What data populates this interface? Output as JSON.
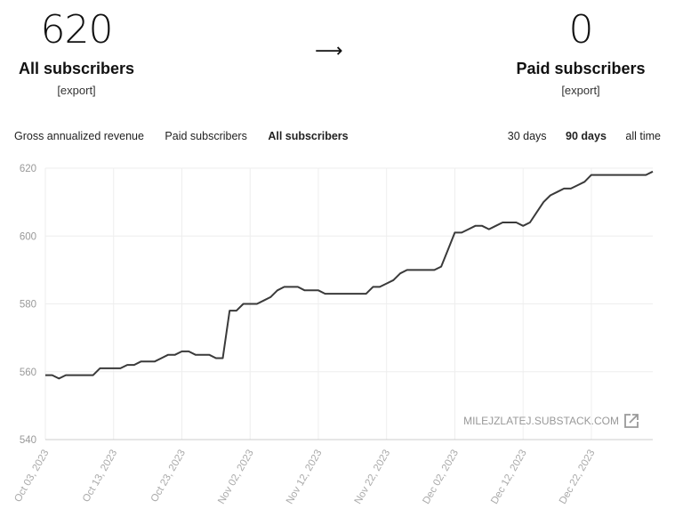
{
  "summary": {
    "all_count": "620",
    "all_label": "All subscribers",
    "all_export": "[export]",
    "arrow": "⟶",
    "paid_count": "0",
    "paid_label": "Paid subscribers",
    "paid_export": "[export]"
  },
  "metric_tabs": [
    {
      "label": "Gross annualized revenue",
      "active": false
    },
    {
      "label": "Paid subscribers",
      "active": false
    },
    {
      "label": "All subscribers",
      "active": true
    }
  ],
  "range_tabs": [
    {
      "label": "30 days",
      "active": false
    },
    {
      "label": "90 days",
      "active": true
    },
    {
      "label": "all time",
      "active": false
    }
  ],
  "watermark": "MILEJZLATEJ.SUBSTACK.COM",
  "colors": {
    "line": "#3a3a3a",
    "grid": "#eeeeee",
    "tick": "#999999"
  },
  "icons": {
    "external_link": "external-link-icon"
  },
  "chart_data": {
    "type": "line",
    "title": "",
    "xlabel": "",
    "ylabel": "",
    "ylim": [
      540,
      620
    ],
    "yticks": [
      540,
      560,
      580,
      600,
      620
    ],
    "xticks": [
      "Oct 03, 2023",
      "Oct 13, 2023",
      "Oct 23, 2023",
      "Nov 02, 2023",
      "Nov 12, 2023",
      "Nov 22, 2023",
      "Dec 02, 2023",
      "Dec 12, 2023",
      "Dec 22, 2023"
    ],
    "grid": true,
    "series": [
      {
        "x": [
          "2023-10-03",
          "2023-10-04",
          "2023-10-05",
          "2023-10-06",
          "2023-10-07",
          "2023-10-08",
          "2023-10-09",
          "2023-10-10",
          "2023-10-11",
          "2023-10-12",
          "2023-10-13",
          "2023-10-14",
          "2023-10-15",
          "2023-10-16",
          "2023-10-17",
          "2023-10-18",
          "2023-10-19",
          "2023-10-20",
          "2023-10-21",
          "2023-10-22",
          "2023-10-23",
          "2023-10-24",
          "2023-10-25",
          "2023-10-26",
          "2023-10-27",
          "2023-10-28",
          "2023-10-29",
          "2023-10-30",
          "2023-10-31",
          "2023-11-01",
          "2023-11-02",
          "2023-11-03",
          "2023-11-04",
          "2023-11-05",
          "2023-11-06",
          "2023-11-07",
          "2023-11-08",
          "2023-11-09",
          "2023-11-10",
          "2023-11-11",
          "2023-11-12",
          "2023-11-13",
          "2023-11-14",
          "2023-11-15",
          "2023-11-16",
          "2023-11-17",
          "2023-11-18",
          "2023-11-19",
          "2023-11-20",
          "2023-11-21",
          "2023-11-22",
          "2023-11-23",
          "2023-11-24",
          "2023-11-25",
          "2023-11-26",
          "2023-11-27",
          "2023-11-28",
          "2023-11-29",
          "2023-11-30",
          "2023-12-01",
          "2023-12-02",
          "2023-12-03",
          "2023-12-04",
          "2023-12-05",
          "2023-12-06",
          "2023-12-07",
          "2023-12-08",
          "2023-12-09",
          "2023-12-10",
          "2023-12-11",
          "2023-12-12",
          "2023-12-13",
          "2023-12-14",
          "2023-12-15",
          "2023-12-16",
          "2023-12-17",
          "2023-12-18",
          "2023-12-19",
          "2023-12-20",
          "2023-12-21",
          "2023-12-22",
          "2023-12-23",
          "2023-12-24",
          "2023-12-25",
          "2023-12-26",
          "2023-12-27",
          "2023-12-28",
          "2023-12-29",
          "2023-12-30",
          "2023-12-31"
        ],
        "values": [
          559,
          559,
          558,
          559,
          559,
          559,
          559,
          559,
          561,
          561,
          561,
          561,
          562,
          562,
          563,
          563,
          563,
          564,
          565,
          565,
          566,
          566,
          565,
          565,
          565,
          564,
          564,
          578,
          578,
          580,
          580,
          580,
          581,
          582,
          584,
          585,
          585,
          585,
          584,
          584,
          584,
          583,
          583,
          583,
          583,
          583,
          583,
          583,
          585,
          585,
          586,
          587,
          589,
          590,
          590,
          590,
          590,
          590,
          591,
          596,
          601,
          601,
          602,
          603,
          603,
          602,
          603,
          604,
          604,
          604,
          603,
          604,
          607,
          610,
          612,
          613,
          614,
          614,
          615,
          616,
          618,
          618,
          618,
          618,
          618,
          618,
          618,
          618,
          618,
          619
        ]
      }
    ]
  }
}
